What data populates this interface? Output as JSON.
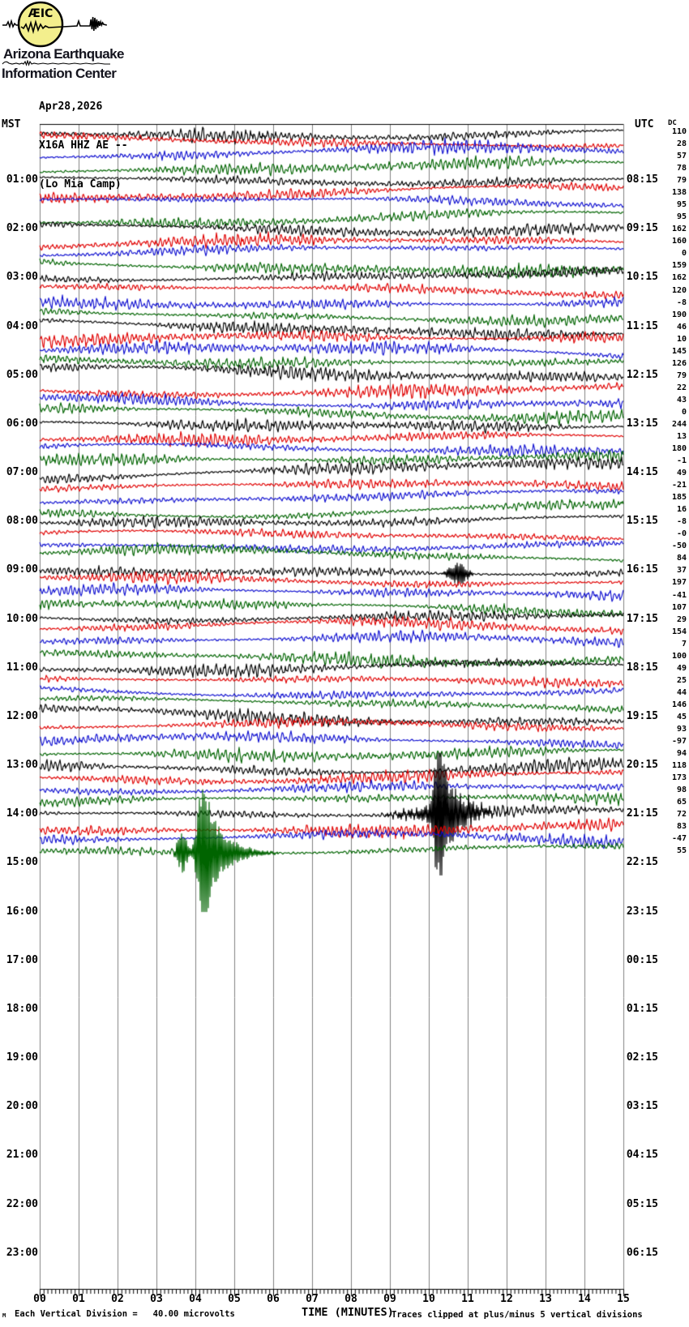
{
  "header": {
    "logo_text": "ÆIC",
    "org_line1": "Arizona Earthquake",
    "org_line2": "Information Center",
    "logo_circle_color": "#f3ef8d"
  },
  "station": {
    "date": "Apr28,2026",
    "id_line": "X16A HHZ AE --",
    "name_line": "(Lo Mia Camp)"
  },
  "axes": {
    "left_header": "MST",
    "right_header": "UTC",
    "dc_header": "DC"
  },
  "footer": {
    "left_mark": "M",
    "scale_note": "Each Vertical Division =   40.00 microvolts",
    "x_axis_title": "TIME (MINUTES)",
    "clip_note": "Traces clipped at plus/minus 5 vertical divisions"
  },
  "colors": {
    "trace_cycle": {
      "black": "#000000",
      "red": "#e00000",
      "blue": "#1010d0",
      "green": "#006400"
    },
    "grid": "#808080",
    "axis": "#000000"
  },
  "chart_data": {
    "type": "seismogram_helicorder",
    "minutes_per_row": 15,
    "x_range_minutes": [
      0,
      15
    ],
    "x_tick_labels": [
      "00",
      "01",
      "02",
      "03",
      "04",
      "05",
      "06",
      "07",
      "08",
      "09",
      "10",
      "11",
      "12",
      "13",
      "14",
      "15"
    ],
    "left_time_labels": [
      "01:00",
      "02:00",
      "03:00",
      "04:00",
      "05:00",
      "06:00",
      "07:00",
      "08:00",
      "09:00",
      "10:00",
      "11:00",
      "12:00",
      "13:00",
      "14:00",
      "15:00",
      "16:00",
      "17:00",
      "18:00",
      "19:00",
      "20:00",
      "21:00",
      "22:00",
      "23:00"
    ],
    "right_time_labels": [
      "08:15",
      "09:15",
      "10:15",
      "11:15",
      "12:15",
      "13:15",
      "14:15",
      "15:15",
      "16:15",
      "17:15",
      "18:15",
      "19:15",
      "20:15",
      "21:15",
      "22:15",
      "23:15",
      "00:15",
      "01:15",
      "02:15",
      "03:15",
      "04:15",
      "05:15",
      "06:15"
    ],
    "clip_divisions": 5,
    "microvolts_per_division": 40.0,
    "rows": [
      {
        "mst": "00:00",
        "color": "black",
        "dc": "110"
      },
      {
        "mst": "00:15",
        "color": "red",
        "dc": "28"
      },
      {
        "mst": "00:30",
        "color": "blue",
        "dc": "57"
      },
      {
        "mst": "00:45",
        "color": "green",
        "dc": "78"
      },
      {
        "mst": "01:00",
        "color": "black",
        "dc": "79"
      },
      {
        "mst": "01:15",
        "color": "red",
        "dc": "138"
      },
      {
        "mst": "01:30",
        "color": "blue",
        "dc": "95"
      },
      {
        "mst": "01:45",
        "color": "green",
        "dc": "95"
      },
      {
        "mst": "02:00",
        "color": "black",
        "dc": "162"
      },
      {
        "mst": "02:15",
        "color": "red",
        "dc": "160"
      },
      {
        "mst": "02:30",
        "color": "blue",
        "dc": "0"
      },
      {
        "mst": "02:45",
        "color": "green",
        "dc": "159"
      },
      {
        "mst": "03:00",
        "color": "black",
        "dc": "162"
      },
      {
        "mst": "03:15",
        "color": "red",
        "dc": "120"
      },
      {
        "mst": "03:30",
        "color": "blue",
        "dc": "-8"
      },
      {
        "mst": "03:45",
        "color": "green",
        "dc": "190"
      },
      {
        "mst": "04:00",
        "color": "black",
        "dc": "46"
      },
      {
        "mst": "04:15",
        "color": "red",
        "dc": "10"
      },
      {
        "mst": "04:30",
        "color": "blue",
        "dc": "145"
      },
      {
        "mst": "04:45",
        "color": "green",
        "dc": "126"
      },
      {
        "mst": "05:00",
        "color": "black",
        "dc": "79"
      },
      {
        "mst": "05:15",
        "color": "red",
        "dc": "22"
      },
      {
        "mst": "05:30",
        "color": "blue",
        "dc": "43"
      },
      {
        "mst": "05:45",
        "color": "green",
        "dc": "0"
      },
      {
        "mst": "06:00",
        "color": "black",
        "dc": "244"
      },
      {
        "mst": "06:15",
        "color": "red",
        "dc": "13"
      },
      {
        "mst": "06:30",
        "color": "blue",
        "dc": "180"
      },
      {
        "mst": "06:45",
        "color": "green",
        "dc": "-1"
      },
      {
        "mst": "07:00",
        "color": "black",
        "dc": "49"
      },
      {
        "mst": "07:15",
        "color": "red",
        "dc": "-21"
      },
      {
        "mst": "07:30",
        "color": "blue",
        "dc": "185"
      },
      {
        "mst": "07:45",
        "color": "green",
        "dc": "16"
      },
      {
        "mst": "08:00",
        "color": "black",
        "dc": "-8"
      },
      {
        "mst": "08:15",
        "color": "red",
        "dc": "-0"
      },
      {
        "mst": "08:30",
        "color": "blue",
        "dc": "-50"
      },
      {
        "mst": "08:45",
        "color": "green",
        "dc": "84"
      },
      {
        "mst": "09:00",
        "color": "black",
        "dc": "37"
      },
      {
        "mst": "09:15",
        "color": "red",
        "dc": "197"
      },
      {
        "mst": "09:30",
        "color": "blue",
        "dc": "-41"
      },
      {
        "mst": "09:45",
        "color": "green",
        "dc": "107"
      },
      {
        "mst": "10:00",
        "color": "black",
        "dc": "29"
      },
      {
        "mst": "10:15",
        "color": "red",
        "dc": "154"
      },
      {
        "mst": "10:30",
        "color": "blue",
        "dc": "7"
      },
      {
        "mst": "10:45",
        "color": "green",
        "dc": "100"
      },
      {
        "mst": "11:00",
        "color": "black",
        "dc": "49"
      },
      {
        "mst": "11:15",
        "color": "red",
        "dc": "25"
      },
      {
        "mst": "11:30",
        "color": "blue",
        "dc": "44"
      },
      {
        "mst": "11:45",
        "color": "green",
        "dc": "146"
      },
      {
        "mst": "12:00",
        "color": "black",
        "dc": "45"
      },
      {
        "mst": "12:15",
        "color": "red",
        "dc": "93"
      },
      {
        "mst": "12:30",
        "color": "blue",
        "dc": "-97"
      },
      {
        "mst": "12:45",
        "color": "green",
        "dc": "94"
      },
      {
        "mst": "13:00",
        "color": "black",
        "dc": "118"
      },
      {
        "mst": "13:15",
        "color": "red",
        "dc": "173"
      },
      {
        "mst": "13:30",
        "color": "blue",
        "dc": "98"
      },
      {
        "mst": "13:45",
        "color": "green",
        "dc": "65"
      },
      {
        "mst": "14:00",
        "color": "black",
        "dc": "72"
      },
      {
        "mst": "14:15",
        "color": "red",
        "dc": "83"
      },
      {
        "mst": "14:30",
        "color": "blue",
        "dc": "-47"
      },
      {
        "mst": "14:45",
        "color": "green",
        "dc": "55"
      }
    ],
    "events": [
      {
        "trace_mst": "14:00",
        "color": "black",
        "minute_in_row": 10.3,
        "clipped": true,
        "type": "quake"
      },
      {
        "trace_mst": "14:45",
        "color": "green",
        "minute_in_row": 4.23,
        "clipped": true,
        "type": "quake"
      },
      {
        "trace_mst": "09:00",
        "color": "black",
        "minute_in_row": 10.75,
        "clipped": false,
        "type": "minor_burst"
      }
    ]
  }
}
